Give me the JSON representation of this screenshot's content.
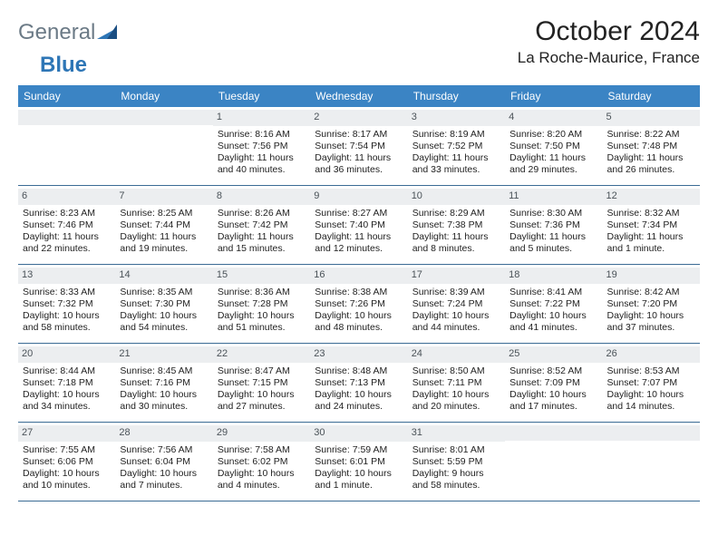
{
  "logo": {
    "part1": "General",
    "part2": "Blue"
  },
  "title": "October 2024",
  "location": "La Roche-Maurice, France",
  "colors": {
    "header_bg": "#3b84c4",
    "header_text": "#ffffff",
    "daynum_bg": "#eceef0",
    "daynum_text": "#4a5258",
    "divider": "#3b6c95",
    "logo_gray": "#6b7a86",
    "logo_blue": "#2e76b6",
    "text": "#222222",
    "background": "#ffffff"
  },
  "typography": {
    "title_fontsize": 30,
    "location_fontsize": 17,
    "dow_fontsize": 12,
    "cell_fontsize": 10.5,
    "daynum_fontsize": 11,
    "logo_fontsize": 24
  },
  "dow": [
    "Sunday",
    "Monday",
    "Tuesday",
    "Wednesday",
    "Thursday",
    "Friday",
    "Saturday"
  ],
  "weeks": [
    [
      {
        "n": "",
        "sunrise": "",
        "sunset": "",
        "daylight1": "",
        "daylight2": ""
      },
      {
        "n": "",
        "sunrise": "",
        "sunset": "",
        "daylight1": "",
        "daylight2": ""
      },
      {
        "n": "1",
        "sunrise": "Sunrise: 8:16 AM",
        "sunset": "Sunset: 7:56 PM",
        "daylight1": "Daylight: 11 hours",
        "daylight2": "and 40 minutes."
      },
      {
        "n": "2",
        "sunrise": "Sunrise: 8:17 AM",
        "sunset": "Sunset: 7:54 PM",
        "daylight1": "Daylight: 11 hours",
        "daylight2": "and 36 minutes."
      },
      {
        "n": "3",
        "sunrise": "Sunrise: 8:19 AM",
        "sunset": "Sunset: 7:52 PM",
        "daylight1": "Daylight: 11 hours",
        "daylight2": "and 33 minutes."
      },
      {
        "n": "4",
        "sunrise": "Sunrise: 8:20 AM",
        "sunset": "Sunset: 7:50 PM",
        "daylight1": "Daylight: 11 hours",
        "daylight2": "and 29 minutes."
      },
      {
        "n": "5",
        "sunrise": "Sunrise: 8:22 AM",
        "sunset": "Sunset: 7:48 PM",
        "daylight1": "Daylight: 11 hours",
        "daylight2": "and 26 minutes."
      }
    ],
    [
      {
        "n": "6",
        "sunrise": "Sunrise: 8:23 AM",
        "sunset": "Sunset: 7:46 PM",
        "daylight1": "Daylight: 11 hours",
        "daylight2": "and 22 minutes."
      },
      {
        "n": "7",
        "sunrise": "Sunrise: 8:25 AM",
        "sunset": "Sunset: 7:44 PM",
        "daylight1": "Daylight: 11 hours",
        "daylight2": "and 19 minutes."
      },
      {
        "n": "8",
        "sunrise": "Sunrise: 8:26 AM",
        "sunset": "Sunset: 7:42 PM",
        "daylight1": "Daylight: 11 hours",
        "daylight2": "and 15 minutes."
      },
      {
        "n": "9",
        "sunrise": "Sunrise: 8:27 AM",
        "sunset": "Sunset: 7:40 PM",
        "daylight1": "Daylight: 11 hours",
        "daylight2": "and 12 minutes."
      },
      {
        "n": "10",
        "sunrise": "Sunrise: 8:29 AM",
        "sunset": "Sunset: 7:38 PM",
        "daylight1": "Daylight: 11 hours",
        "daylight2": "and 8 minutes."
      },
      {
        "n": "11",
        "sunrise": "Sunrise: 8:30 AM",
        "sunset": "Sunset: 7:36 PM",
        "daylight1": "Daylight: 11 hours",
        "daylight2": "and 5 minutes."
      },
      {
        "n": "12",
        "sunrise": "Sunrise: 8:32 AM",
        "sunset": "Sunset: 7:34 PM",
        "daylight1": "Daylight: 11 hours",
        "daylight2": "and 1 minute."
      }
    ],
    [
      {
        "n": "13",
        "sunrise": "Sunrise: 8:33 AM",
        "sunset": "Sunset: 7:32 PM",
        "daylight1": "Daylight: 10 hours",
        "daylight2": "and 58 minutes."
      },
      {
        "n": "14",
        "sunrise": "Sunrise: 8:35 AM",
        "sunset": "Sunset: 7:30 PM",
        "daylight1": "Daylight: 10 hours",
        "daylight2": "and 54 minutes."
      },
      {
        "n": "15",
        "sunrise": "Sunrise: 8:36 AM",
        "sunset": "Sunset: 7:28 PM",
        "daylight1": "Daylight: 10 hours",
        "daylight2": "and 51 minutes."
      },
      {
        "n": "16",
        "sunrise": "Sunrise: 8:38 AM",
        "sunset": "Sunset: 7:26 PM",
        "daylight1": "Daylight: 10 hours",
        "daylight2": "and 48 minutes."
      },
      {
        "n": "17",
        "sunrise": "Sunrise: 8:39 AM",
        "sunset": "Sunset: 7:24 PM",
        "daylight1": "Daylight: 10 hours",
        "daylight2": "and 44 minutes."
      },
      {
        "n": "18",
        "sunrise": "Sunrise: 8:41 AM",
        "sunset": "Sunset: 7:22 PM",
        "daylight1": "Daylight: 10 hours",
        "daylight2": "and 41 minutes."
      },
      {
        "n": "19",
        "sunrise": "Sunrise: 8:42 AM",
        "sunset": "Sunset: 7:20 PM",
        "daylight1": "Daylight: 10 hours",
        "daylight2": "and 37 minutes."
      }
    ],
    [
      {
        "n": "20",
        "sunrise": "Sunrise: 8:44 AM",
        "sunset": "Sunset: 7:18 PM",
        "daylight1": "Daylight: 10 hours",
        "daylight2": "and 34 minutes."
      },
      {
        "n": "21",
        "sunrise": "Sunrise: 8:45 AM",
        "sunset": "Sunset: 7:16 PM",
        "daylight1": "Daylight: 10 hours",
        "daylight2": "and 30 minutes."
      },
      {
        "n": "22",
        "sunrise": "Sunrise: 8:47 AM",
        "sunset": "Sunset: 7:15 PM",
        "daylight1": "Daylight: 10 hours",
        "daylight2": "and 27 minutes."
      },
      {
        "n": "23",
        "sunrise": "Sunrise: 8:48 AM",
        "sunset": "Sunset: 7:13 PM",
        "daylight1": "Daylight: 10 hours",
        "daylight2": "and 24 minutes."
      },
      {
        "n": "24",
        "sunrise": "Sunrise: 8:50 AM",
        "sunset": "Sunset: 7:11 PM",
        "daylight1": "Daylight: 10 hours",
        "daylight2": "and 20 minutes."
      },
      {
        "n": "25",
        "sunrise": "Sunrise: 8:52 AM",
        "sunset": "Sunset: 7:09 PM",
        "daylight1": "Daylight: 10 hours",
        "daylight2": "and 17 minutes."
      },
      {
        "n": "26",
        "sunrise": "Sunrise: 8:53 AM",
        "sunset": "Sunset: 7:07 PM",
        "daylight1": "Daylight: 10 hours",
        "daylight2": "and 14 minutes."
      }
    ],
    [
      {
        "n": "27",
        "sunrise": "Sunrise: 7:55 AM",
        "sunset": "Sunset: 6:06 PM",
        "daylight1": "Daylight: 10 hours",
        "daylight2": "and 10 minutes."
      },
      {
        "n": "28",
        "sunrise": "Sunrise: 7:56 AM",
        "sunset": "Sunset: 6:04 PM",
        "daylight1": "Daylight: 10 hours",
        "daylight2": "and 7 minutes."
      },
      {
        "n": "29",
        "sunrise": "Sunrise: 7:58 AM",
        "sunset": "Sunset: 6:02 PM",
        "daylight1": "Daylight: 10 hours",
        "daylight2": "and 4 minutes."
      },
      {
        "n": "30",
        "sunrise": "Sunrise: 7:59 AM",
        "sunset": "Sunset: 6:01 PM",
        "daylight1": "Daylight: 10 hours",
        "daylight2": "and 1 minute."
      },
      {
        "n": "31",
        "sunrise": "Sunrise: 8:01 AM",
        "sunset": "Sunset: 5:59 PM",
        "daylight1": "Daylight: 9 hours",
        "daylight2": "and 58 minutes."
      },
      {
        "n": "",
        "sunrise": "",
        "sunset": "",
        "daylight1": "",
        "daylight2": ""
      },
      {
        "n": "",
        "sunrise": "",
        "sunset": "",
        "daylight1": "",
        "daylight2": ""
      }
    ]
  ]
}
